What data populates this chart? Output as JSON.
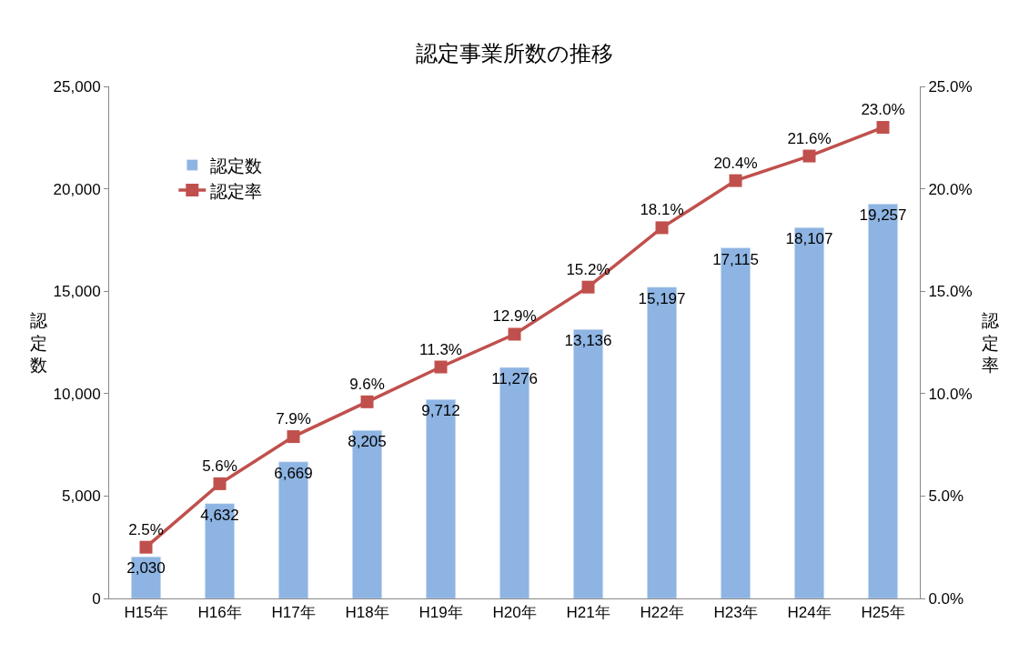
{
  "chart_data": {
    "type": "bar",
    "title": "認定事業所数の推移",
    "ylabel": "認定数",
    "y2label": "認定率",
    "categories": [
      "H15年",
      "H16年",
      "H17年",
      "H18年",
      "H19年",
      "H20年",
      "H21年",
      "H22年",
      "H23年",
      "H24年",
      "H25年"
    ],
    "series": [
      {
        "name": "認定数",
        "color": "#8db4e2",
        "values": [
          2030,
          4632,
          6669,
          8205,
          9712,
          11276,
          13136,
          15197,
          17115,
          18107,
          19257
        ],
        "value_labels": [
          "2,030",
          "4,632",
          "6,669",
          "8,205",
          "9,712",
          "11,276",
          "13,136",
          "15,197",
          "17,115",
          "18,107",
          "19,257"
        ]
      },
      {
        "name": "認定率",
        "type": "line",
        "axis": "y2",
        "color": "#c0504d",
        "marker": "square",
        "values": [
          2.5,
          5.6,
          7.9,
          9.6,
          11.3,
          12.9,
          15.2,
          18.1,
          20.4,
          21.6,
          23.0
        ],
        "value_labels": [
          "2.5%",
          "5.6%",
          "7.9%",
          "9.6%",
          "11.3%",
          "12.9%",
          "15.2%",
          "18.1%",
          "20.4%",
          "21.6%",
          "23.0%"
        ]
      }
    ],
    "ylim": [
      0,
      25000
    ],
    "yticks": [
      {
        "value": 0,
        "label": "0"
      },
      {
        "value": 5000,
        "label": "5,000"
      },
      {
        "value": 10000,
        "label": "10,000"
      },
      {
        "value": 15000,
        "label": "15,000"
      },
      {
        "value": 20000,
        "label": "20,000"
      },
      {
        "value": 25000,
        "label": "25,000"
      }
    ],
    "y2lim": [
      0,
      25
    ],
    "y2ticks": [
      {
        "value": 0,
        "label": "0.0%"
      },
      {
        "value": 5,
        "label": "5.0%"
      },
      {
        "value": 10,
        "label": "10.0%"
      },
      {
        "value": 15,
        "label": "15.0%"
      },
      {
        "value": 20,
        "label": "20.0%"
      },
      {
        "value": 25,
        "label": "25.0%"
      }
    ],
    "legend": "top left"
  }
}
